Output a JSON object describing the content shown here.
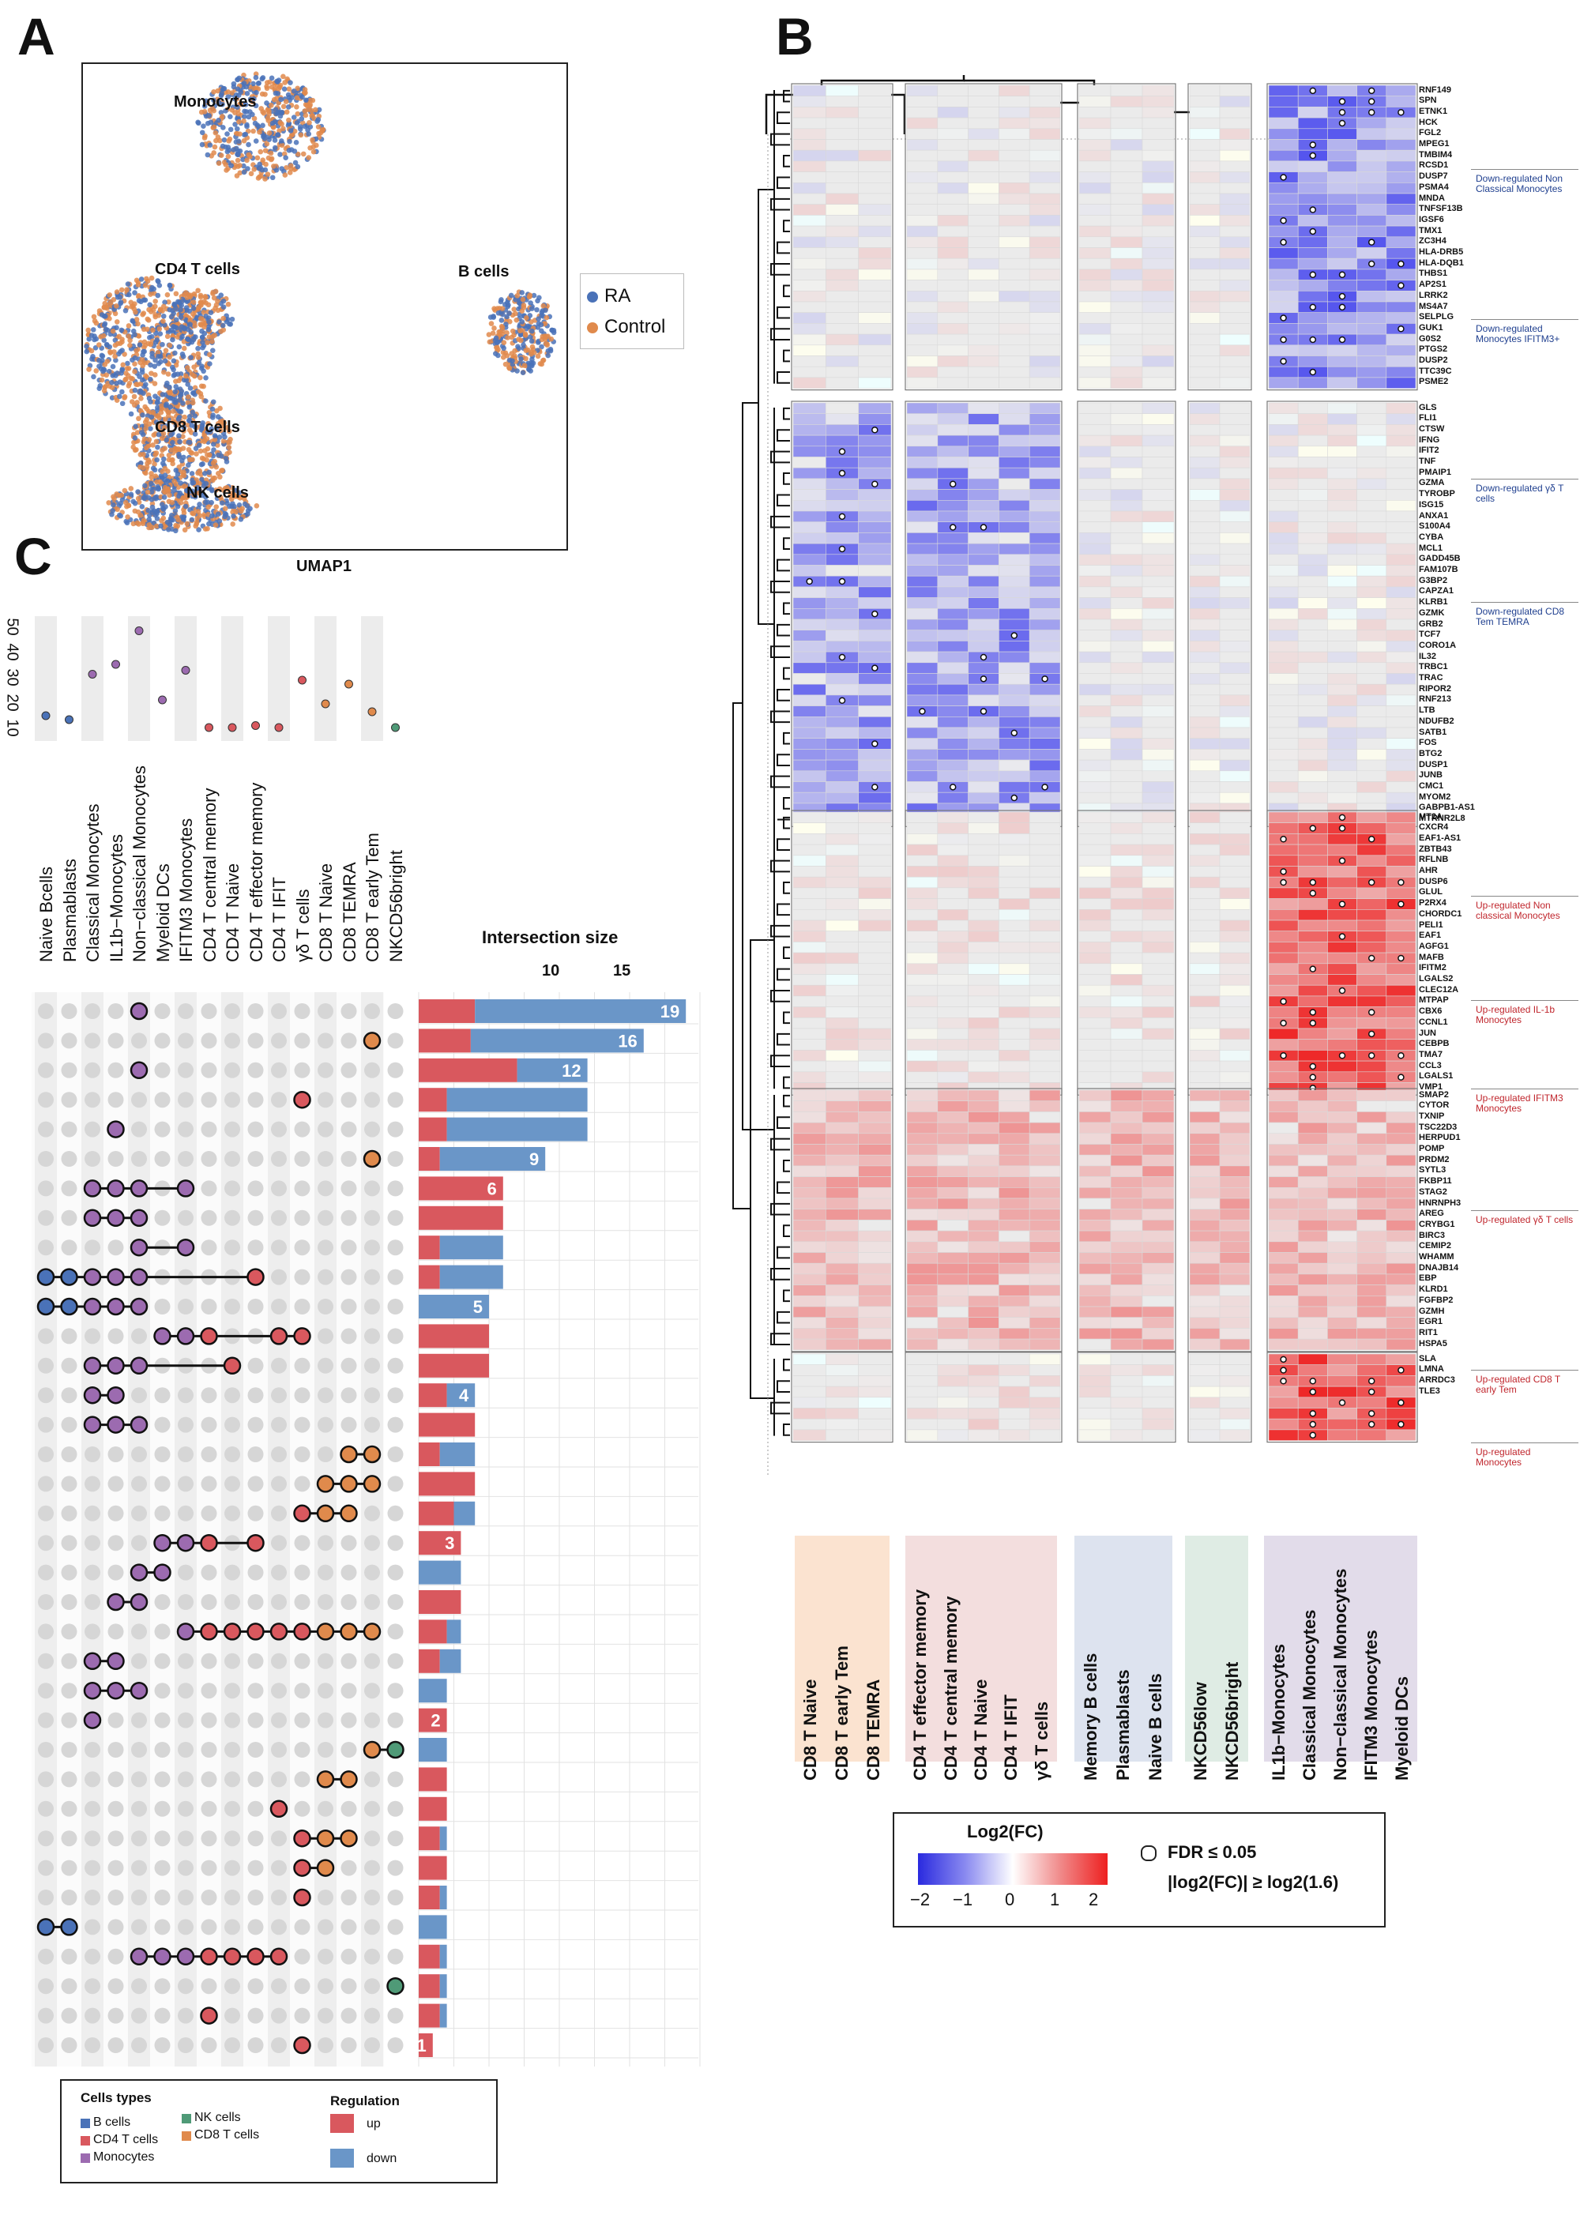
{
  "panels": {
    "a": "A",
    "b": "B",
    "c": "C"
  },
  "umap": {
    "xlabel": "UMAP1",
    "clusters": [
      "Monocytes",
      "CD4 T cells",
      "B cells",
      "CD8 T cells",
      "NK cells"
    ],
    "legend": [
      {
        "label": "RA",
        "color": "#4a72b8"
      },
      {
        "label": "Control",
        "color": "#e08a4c"
      }
    ]
  },
  "heatmap": {
    "row_genes": [
      "RNF149",
      "SPN",
      "ETNK1",
      "HCK",
      "FGL2",
      "MPEG1",
      "TMBIM4",
      "RCSD1",
      "DUSP7",
      "PSMA4",
      "MNDA",
      "TNFSF13B",
      "IGSF6",
      "TMX1",
      "ZC3H4",
      "HLA-DRB5",
      "HLA-DQB1",
      "THBS1",
      "AP2S1",
      "LRRK2",
      "MS4A7",
      "SELPLG",
      "GUK1",
      "G0S2",
      "PTGS2",
      "DUSP2",
      "TTC39C",
      "PSME2",
      "GLS",
      "FLI1",
      "CTSW",
      "IFNG",
      "IFIT2",
      "TNF",
      "PMAIP1",
      "GZMA",
      "TYROBP",
      "ISG15",
      "ANXA1",
      "S100A4",
      "CYBA",
      "MCL1",
      "GADD45B",
      "FAM107B",
      "G3BP2",
      "CAPZA1",
      "KLRB1",
      "GZMK",
      "GRB2",
      "TCF7",
      "CORO1A",
      "IL32",
      "TRBC1",
      "TRAC",
      "RIPOR2",
      "RNF213",
      "LTB",
      "NDUFB2",
      "SATB1",
      "FOS",
      "BTG2",
      "DUSP1",
      "JUNB",
      "CMC1",
      "MYOM2",
      "GABPB1-AS1",
      "MTRNR2L8",
      "MT2A",
      "CXCR4",
      "EAF1-AS1",
      "ZBTB43",
      "RFLNB",
      "AHR",
      "DUSP6",
      "GLUL",
      "P2RX4",
      "CHORDC1",
      "PELI1",
      "EAF1",
      "AGFG1",
      "MAFB",
      "IFITM2",
      "LGALS2",
      "CLEC12A",
      "MTPAP",
      "CBX6",
      "CCNL1",
      "JUN",
      "CEBPB",
      "TMA7",
      "CCL3",
      "LGALS1",
      "VMP1",
      "SMAP2",
      "CYTOR",
      "TXNIP",
      "TSC22D3",
      "HERPUD1",
      "POMP",
      "PRDM2",
      "SYTL3",
      "FKBP11",
      "STAG2",
      "HNRNPH3",
      "AREG",
      "CRYBG1",
      "BIRC3",
      "CEMIP2",
      "WHAMM",
      "DNAJB14",
      "EBP",
      "KLRD1",
      "FGFBP2",
      "GZMH",
      "EGR1",
      "RIT1",
      "HSPA5",
      "SLA",
      "LMNA",
      "ARRDC3",
      "TLE3"
    ],
    "annotations": [
      {
        "text": "Down-regulated Non Classical Monocytes",
        "type": "down"
      },
      {
        "text": "Down-regulated Monocytes IFITM3+",
        "type": "down"
      },
      {
        "text": "Down-regulated γδ T cells",
        "type": "down"
      },
      {
        "text": "Down-regulated CD8 Tem TEMRA",
        "type": "down"
      },
      {
        "text": "Up-regulated Non classical Monocytes",
        "type": "up"
      },
      {
        "text": "Up-regulated IL-1b Monocytes",
        "type": "up"
      },
      {
        "text": "Up-regulated IFITM3 Monocytes",
        "type": "up"
      },
      {
        "text": "Up-regulated γδ T cells",
        "type": "up"
      },
      {
        "text": "Up-regulated CD8 T early Tem",
        "type": "up"
      },
      {
        "text": "Up-regulated Monocytes",
        "type": "up"
      }
    ],
    "column_groups": [
      {
        "color": "#fbe3d0",
        "columns": [
          "CD8 T Naive",
          "CD8 T early Tem",
          "CD8 TEMRA"
        ]
      },
      {
        "color": "#f3dede",
        "columns": [
          "CD4 T effector memory",
          "CD4 T central memory",
          "CD4 T Naive",
          "CD4 T IFIT",
          "γδ T cells"
        ]
      },
      {
        "color": "#dde3ef",
        "columns": [
          "Memory B cells",
          "Plasmablasts",
          "Naive B cells"
        ]
      },
      {
        "color": "#dfece4",
        "columns": [
          "NKCD56low",
          "NKCD56bright"
        ]
      },
      {
        "color": "#e2dcea",
        "columns": [
          "IL1b−Monocytes",
          "Classical Monocytes",
          "Non−classical Monocytes",
          "IFITM3 Monocytes",
          "Myeloid DCs"
        ]
      }
    ],
    "legend": {
      "title": "Log2(FC)",
      "ticks": [
        "−2",
        "−1",
        "0",
        "1",
        "2"
      ],
      "colors": [
        "#2a2adf",
        "#ffffff",
        "#ee2020"
      ],
      "sig_line1": "FDR ≤ 0.05",
      "sig_line2": "|log2(FC)| ≥ log2(1.6)"
    }
  },
  "upset": {
    "title": "Intersection size",
    "axis_ticks": [
      "10",
      "15"
    ],
    "dot_axis_ticks": [
      "50",
      "40",
      "30",
      "20",
      "10"
    ],
    "set_labels": [
      "Naive Bcells",
      "Plasmablasts",
      "Classical Monocytes",
      "IL1b−Monocytes",
      "Non−classical Monocytes",
      "Myeloid DCs",
      "IFITM3 Monocytes",
      "CD4 T central memory",
      "CD4 T Naive",
      "CD4 T effector memory",
      "CD4 T IFIT",
      "γδ T cells",
      "CD8 T Naive",
      "CD8 TEMRA",
      "CD8 T early Tem",
      "NKCD56bright"
    ],
    "set_colors": [
      "#4a72b8",
      "#4a72b8",
      "#9c6bb0",
      "#9c6bb0",
      "#9c6bb0",
      "#9c6bb0",
      "#9c6bb0",
      "#d9585e",
      "#d9585e",
      "#d9585e",
      "#d9585e",
      "#d9585e",
      "#e08a4c",
      "#e08a4c",
      "#e08a4c",
      "#4f9a77"
    ],
    "set_sizes": [
      12,
      10,
      33,
      38,
      55,
      20,
      35,
      6,
      6,
      7,
      6,
      30,
      18,
      28,
      14,
      6
    ],
    "bar_labels": [
      "19",
      "16",
      "12",
      "9",
      "6",
      "5",
      "4",
      "3",
      "2",
      "1"
    ],
    "legend": {
      "title1": "Cells types",
      "items1": [
        {
          "label": "B cells",
          "color": "#4a72b8"
        },
        {
          "label": "CD4  T cells",
          "color": "#d9585e"
        },
        {
          "label": "Monocytes",
          "color": "#9c6bb0"
        },
        {
          "label": "NK cells",
          "color": "#4f9a77"
        },
        {
          "label": "CD8 T cells",
          "color": "#e08a4c"
        }
      ],
      "title2": "Regulation",
      "items2": [
        {
          "label": "up",
          "color": "#d9585e"
        },
        {
          "label": "down",
          "color": "#6a96c8"
        }
      ]
    }
  }
}
